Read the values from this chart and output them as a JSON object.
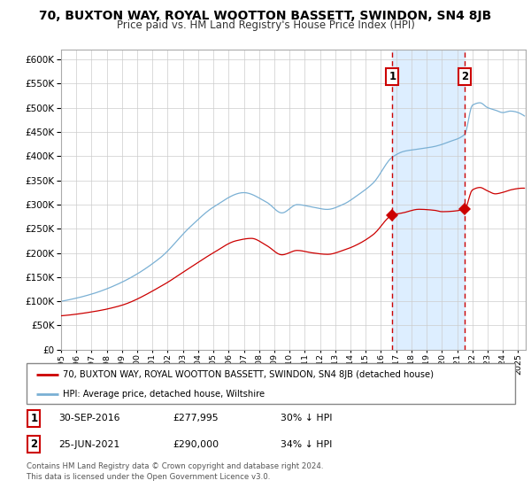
{
  "title": "70, BUXTON WAY, ROYAL WOOTTON BASSETT, SWINDON, SN4 8JB",
  "subtitle": "Price paid vs. HM Land Registry's House Price Index (HPI)",
  "title_fontsize": 10.5,
  "subtitle_fontsize": 9,
  "red_label": "70, BUXTON WAY, ROYAL WOOTTON BASSETT, SWINDON, SN4 8JB (detached house)",
  "blue_label": "HPI: Average price, detached house, Wiltshire",
  "transaction1_date": "30-SEP-2016",
  "transaction1_price": "£277,995",
  "transaction1_note": "30% ↓ HPI",
  "transaction2_date": "25-JUN-2021",
  "transaction2_price": "£290,000",
  "transaction2_note": "34% ↓ HPI",
  "footer": "Contains HM Land Registry data © Crown copyright and database right 2024.\nThis data is licensed under the Open Government Licence v3.0.",
  "ylim": [
    0,
    620000
  ],
  "yticks": [
    0,
    50000,
    100000,
    150000,
    200000,
    250000,
    300000,
    350000,
    400000,
    450000,
    500000,
    550000,
    600000
  ],
  "highlight_color": "#ddeeff",
  "red_color": "#cc0000",
  "blue_color": "#7ab0d4",
  "grid_color": "#cccccc",
  "background_color": "#ffffff",
  "transaction1_x": 2016.75,
  "transaction2_x": 2021.5,
  "transaction1_y_red": 277995,
  "transaction2_y_red": 290000,
  "xmin": 1995.0,
  "xmax": 2025.5
}
